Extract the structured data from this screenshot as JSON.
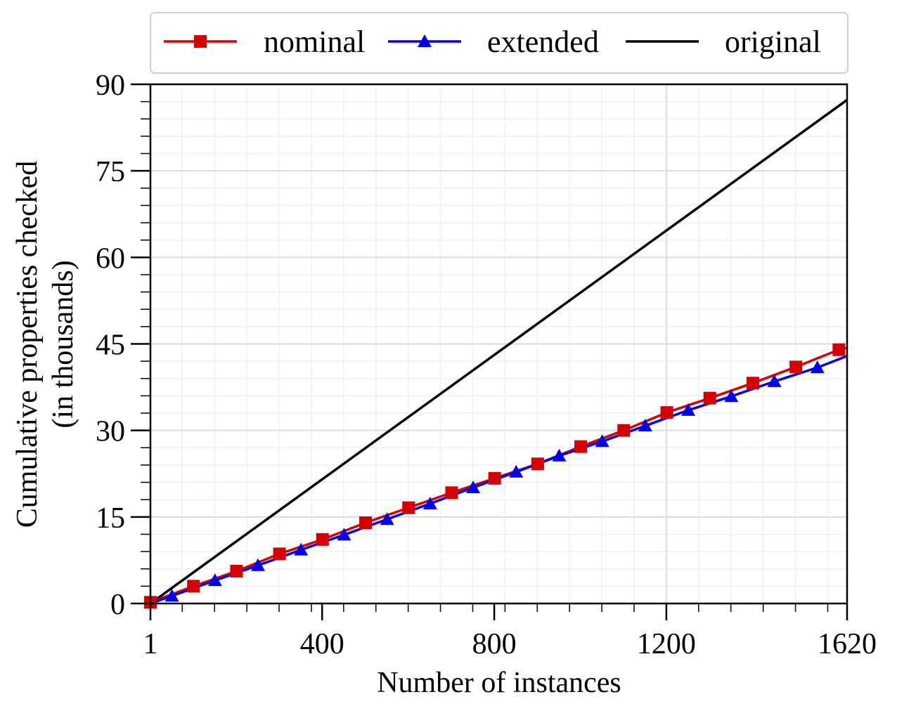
{
  "chart_data": {
    "type": "line",
    "title": "",
    "xlabel": "Number of instances",
    "ylabel": "Cumulative properties checked",
    "ylabel_sub": "(in thousands)",
    "xlim": [
      1,
      1620
    ],
    "ylim": [
      0,
      90
    ],
    "xticks": [
      1,
      400,
      800,
      1200,
      1620
    ],
    "xtick_labels": [
      "1",
      "400",
      "800",
      "1200",
      "1620"
    ],
    "yticks": [
      0,
      15,
      30,
      45,
      60,
      75,
      90
    ],
    "ytick_labels": [
      "0",
      "15",
      "30",
      "45",
      "60",
      "75",
      "90"
    ],
    "grid": true,
    "legend_position": "top",
    "series": [
      {
        "name": "nominal",
        "color": "#d40000",
        "marker": "square",
        "x": [
          1,
          101,
          201,
          301,
          401,
          501,
          601,
          701,
          801,
          901,
          1001,
          1101,
          1201,
          1301,
          1401,
          1501,
          1601,
          1620
        ],
        "y": [
          0.2,
          3.0,
          5.6,
          8.6,
          11.1,
          14.0,
          16.6,
          19.2,
          21.7,
          24.2,
          27.2,
          30.0,
          33.1,
          35.6,
          38.2,
          41.0,
          44.0,
          44.3
        ],
        "marker_x": [
          1,
          101,
          201,
          301,
          401,
          501,
          601,
          701,
          801,
          901,
          1001,
          1101,
          1201,
          1301,
          1401,
          1501,
          1601
        ]
      },
      {
        "name": "extended",
        "color": "#0000ee",
        "marker": "triangle",
        "x": [
          1,
          51,
          151,
          251,
          351,
          451,
          551,
          651,
          751,
          851,
          951,
          1051,
          1151,
          1251,
          1351,
          1451,
          1551,
          1620
        ],
        "y": [
          0,
          1.3,
          4.0,
          6.6,
          9.3,
          11.9,
          14.6,
          17.3,
          20.1,
          22.8,
          25.6,
          28.1,
          30.8,
          33.5,
          35.9,
          38.5,
          40.9,
          42.9
        ],
        "marker_x": [
          51,
          151,
          251,
          351,
          451,
          551,
          651,
          751,
          851,
          951,
          1051,
          1151,
          1251,
          1351,
          1451,
          1551
        ]
      },
      {
        "name": "original",
        "color": "#000000",
        "marker": "none",
        "x": [
          1,
          1620
        ],
        "y": [
          0,
          87.3
        ],
        "marker_x": []
      }
    ]
  }
}
